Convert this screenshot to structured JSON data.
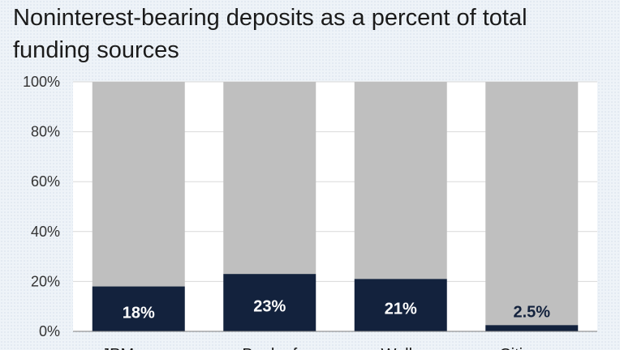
{
  "title": "Noninterest-bearing deposits as a percent of total funding sources",
  "colors": {
    "filled": "#13223d",
    "remainder": "#bfbfbf",
    "gridline": "#d9d9d9",
    "axis": "#7f7f7f",
    "label_inside": "#ffffff",
    "label_outside": "#13223d"
  },
  "chart_data": {
    "type": "bar",
    "stacked": true,
    "categories": [
      "JPMorgan",
      "Bank of",
      "Wells",
      "Citigroup"
    ],
    "series": [
      {
        "values": [
          18,
          23,
          21,
          2.5
        ]
      },
      {
        "values": [
          82,
          77,
          79,
          97.5
        ]
      }
    ],
    "data_labels": [
      "18%",
      "23%",
      "21%",
      "2.5%"
    ],
    "yticks": [
      "0%",
      "20%",
      "40%",
      "60%",
      "80%",
      "100%"
    ],
    "ylim": [
      0,
      100
    ],
    "grid": true
  }
}
